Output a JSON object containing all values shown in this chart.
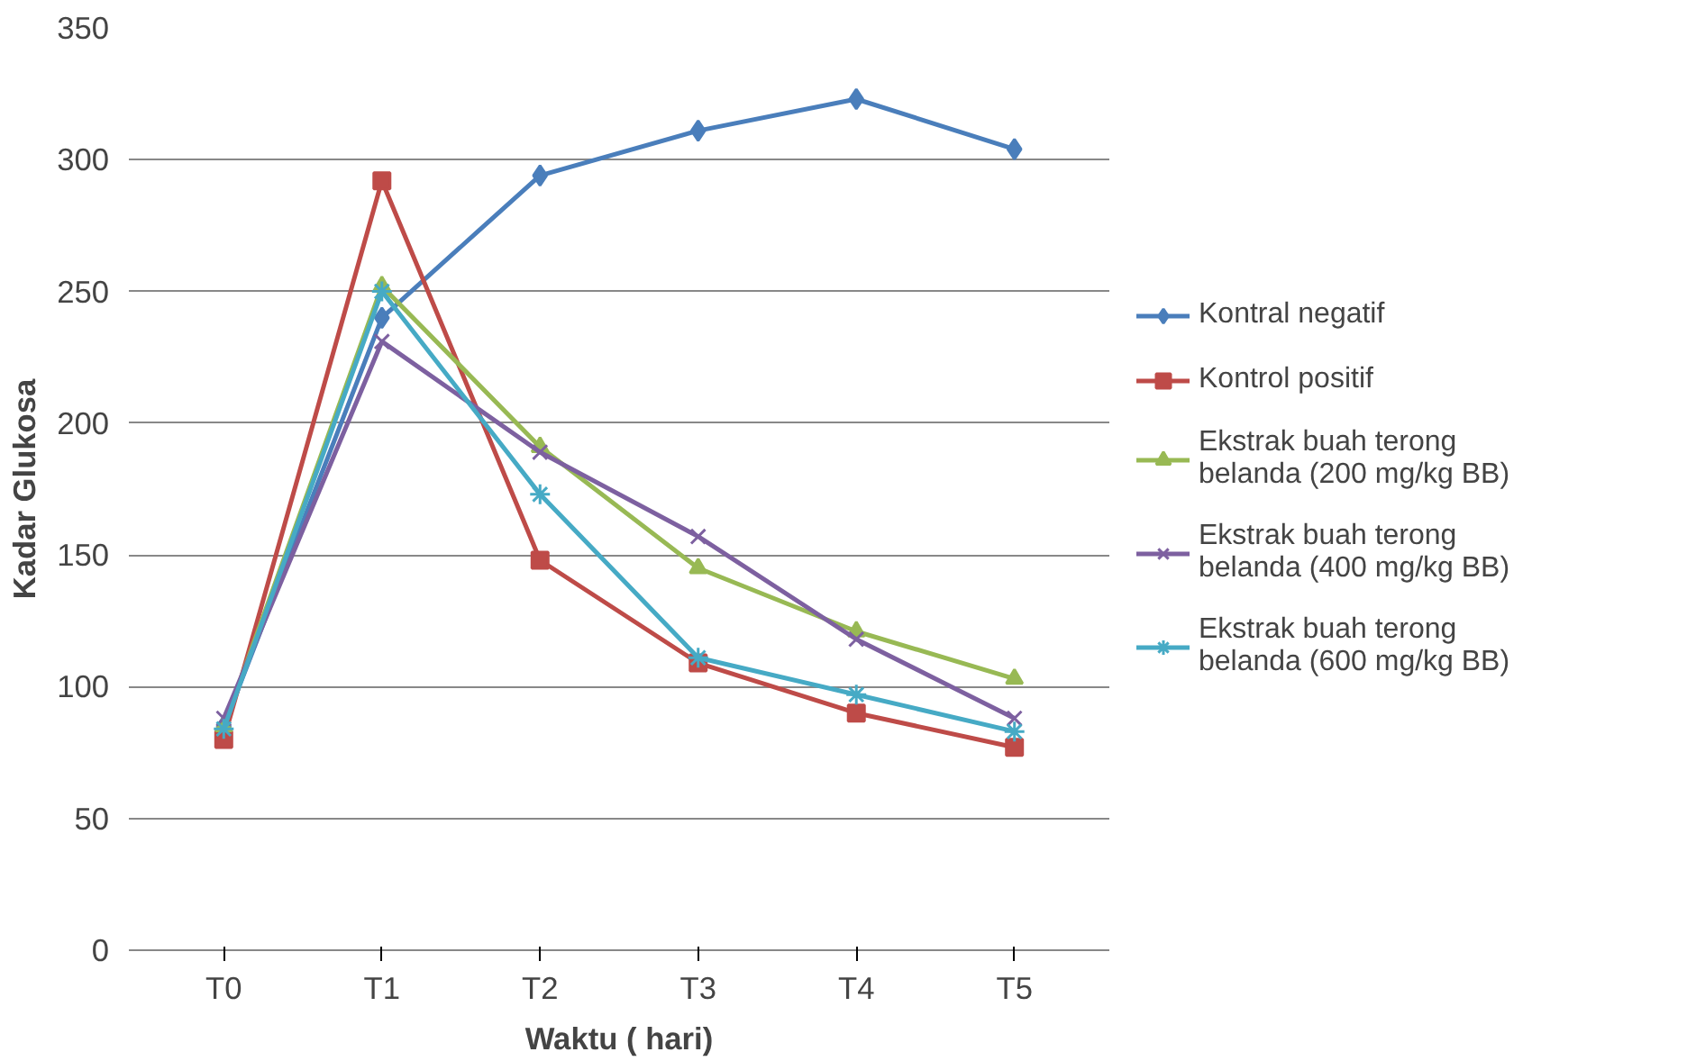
{
  "chart_data": {
    "type": "line",
    "xlabel": "Waktu ( hari)",
    "ylabel": "Kadar Glukosa",
    "categories": [
      "T0",
      "T1",
      "T2",
      "T3",
      "T4",
      "T5"
    ],
    "ylim": [
      0,
      350
    ],
    "yticks": [
      0,
      50,
      100,
      150,
      200,
      250,
      300,
      350
    ],
    "grid": "y",
    "legend": "right",
    "line_style": "solid",
    "series": [
      {
        "name": "Kontral negatif",
        "color": "#4a7ebb",
        "marker": "diamond",
        "values": [
          85,
          240,
          294,
          311,
          323,
          304
        ]
      },
      {
        "name": "Kontrol positif",
        "color": "#be4b48",
        "marker": "square",
        "values": [
          80,
          292,
          148,
          109,
          90,
          77
        ]
      },
      {
        "name": "Ekstrak buah terong belanda (200 mg/kg BB)",
        "color": "#98b954",
        "marker": "triangle",
        "values": [
          85,
          252,
          191,
          145,
          121,
          103
        ]
      },
      {
        "name": "Ekstrak buah terong belanda (400 mg/kg BB)",
        "color": "#7d60a0",
        "marker": "x",
        "values": [
          88,
          231,
          189,
          157,
          118,
          88
        ]
      },
      {
        "name": "Ekstrak buah terong belanda (600 mg/kg BB)",
        "color": "#46aac5",
        "marker": "cross",
        "values": [
          84,
          250,
          173,
          111,
          97,
          83
        ]
      }
    ]
  }
}
